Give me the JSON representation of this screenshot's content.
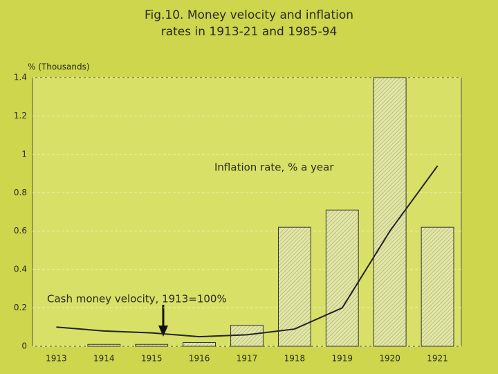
{
  "chart_data": {
    "type": "bar",
    "title": [
      "Fig.10. Money velocity and inflation",
      "rates in 1913-21 and 1985-94"
    ],
    "y_label": "% (Thousands)",
    "categories": [
      "1913",
      "1914",
      "1915",
      "1916",
      "1917",
      "1918",
      "1919",
      "1920",
      "1921"
    ],
    "series": [
      {
        "name": "Inflation rate, % a year",
        "type": "bar",
        "color": "#e2e6a4",
        "values": [
          0,
          0.01,
          0.01,
          0.02,
          0.11,
          0.62,
          0.71,
          1.4,
          0.62
        ]
      },
      {
        "name": "Cash money velocity, 1913=100%",
        "type": "line",
        "color": "#222222",
        "values": [
          0.1,
          0.08,
          0.07,
          0.05,
          0.06,
          0.09,
          0.2,
          0.6,
          0.94
        ]
      }
    ],
    "ylim": [
      0,
      1.4
    ],
    "yticks": [
      0,
      0.2,
      0.4,
      0.6,
      0.8,
      1,
      1.2,
      1.4
    ],
    "grid": true
  }
}
